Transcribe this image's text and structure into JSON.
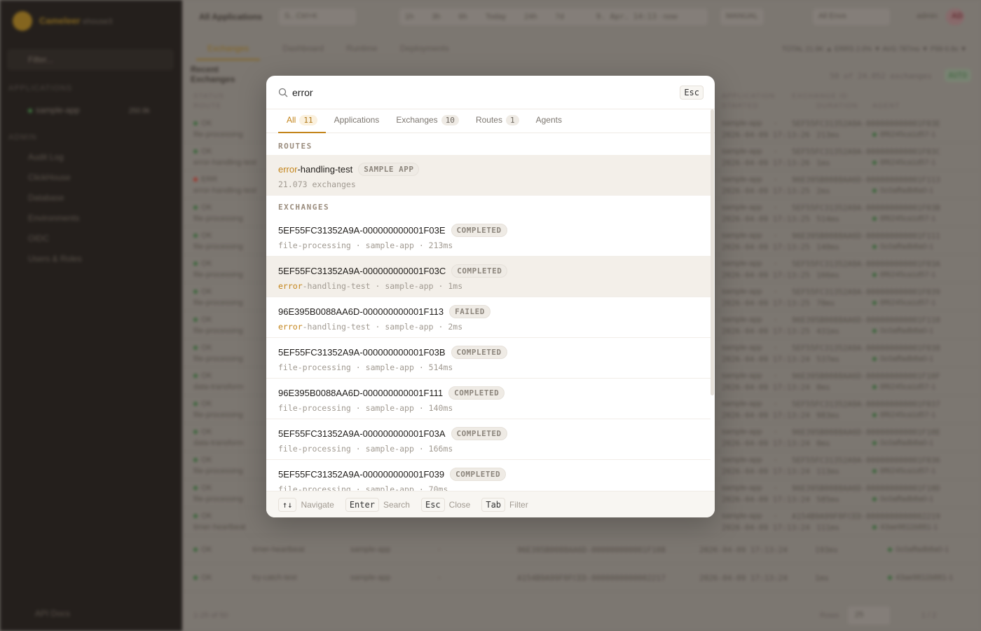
{
  "sidebar": {
    "brand": "Cameleer",
    "brand_sub": "ehouse3",
    "filter_placeholder": "Filter...",
    "applications_label": "APPLICATIONS",
    "app": {
      "name": "sample-app",
      "count": "250.9k"
    },
    "admin_label": "ADMIN",
    "admin_items": [
      "Audit Log",
      "ClickHouse",
      "Database",
      "Environments",
      "OIDC",
      "Users & Roles"
    ],
    "api_docs": "API Docs"
  },
  "topbar": {
    "scope": "All Applications",
    "search_hint": "S.. Ctrl+K",
    "time_buttons": [
      "1h",
      "3h",
      "6h",
      "Today",
      "24h",
      "7d"
    ],
    "range": "9. Apr. 14:13",
    "range_end": "now",
    "manual": "MANUAL",
    "env": "All Envs",
    "user": "admin",
    "avatar": "AD"
  },
  "tabs": [
    "Exchanges",
    "Dashboard",
    "Runtime",
    "Deployments"
  ],
  "kpis": "TOTAL 21.9K ▲  ERRS 2.0% ▼  AVG 787ms ▼  P99 6.9s ▼",
  "section_title": "Recent Exchanges",
  "exchange_count": "50 of 24.052 exchanges",
  "auto": "AUTO",
  "table": {
    "headers": [
      "STATUS",
      "ROUTE",
      "APPLICATION",
      "",
      "EXCHANGE ID",
      "STARTED",
      "DURATION",
      "AGENT"
    ],
    "rows": [
      [
        "OK",
        "file-processing",
        "sample-app",
        "-",
        "5EF55FC31352A9A-000000000001F03E",
        "2026-04-09 17:13:26",
        "213ms",
        "8f6245ca1d57-1"
      ],
      [
        "OK",
        "error-handling-test",
        "sample-app",
        "-",
        "5EF55FC31352A9A-000000000001F03C",
        "2026-04-09 17:13:26",
        "1ms",
        "8f6245ca1d57-1"
      ],
      [
        "ERR",
        "error-handling-test",
        "sample-app",
        "-",
        "96E395B0088AA6D-000000000001F113",
        "2026-04-09 17:13:25",
        "2ms",
        "0c0affadb8a0-1"
      ],
      [
        "OK",
        "file-processing",
        "sample-app",
        "-",
        "5EF55FC31352A9A-000000000001F03B",
        "2026-04-09 17:13:25",
        "514ms",
        "8f6245ca1d57-1"
      ],
      [
        "OK",
        "file-processing",
        "sample-app",
        "-",
        "96E395B0088AA6D-000000000001F111",
        "2026-04-09 17:13:25",
        "140ms",
        "0c0affadb8a0-1"
      ],
      [
        "OK",
        "file-processing",
        "sample-app",
        "-",
        "5EF55FC31352A9A-000000000001F03A",
        "2026-04-09 17:13:25",
        "166ms",
        "8f6245ca1d57-1"
      ],
      [
        "OK",
        "file-processing",
        "sample-app",
        "-",
        "5EF55FC31352A9A-000000000001F039",
        "2026-04-09 17:13:25",
        "70ms",
        "8f6245ca1d57-1"
      ],
      [
        "OK",
        "file-processing",
        "sample-app",
        "-",
        "96E395B0088AA6D-000000000001F110",
        "2026-04-09 17:13:25",
        "431ms",
        "0c0affadb8a0-1"
      ],
      [
        "OK",
        "file-processing",
        "sample-app",
        "-",
        "5EF55FC31352A9A-000000000001F038",
        "2026-04-09 17:13:24",
        "537ms",
        "0c0affadb8a0-1"
      ],
      [
        "OK",
        "data-transform",
        "sample-app",
        "-",
        "96E395B0088AA6D-000000000001F10F",
        "2026-04-09 17:13:24",
        "0ms",
        "8f6245ca1d57-1"
      ],
      [
        "OK",
        "file-processing",
        "sample-app",
        "-",
        "5EF55FC31352A9A-000000000001F037",
        "2026-04-09 17:13:24",
        "983ms",
        "8f6245ca1d57-1"
      ],
      [
        "OK",
        "data-transform",
        "sample-app",
        "-",
        "96E395B0088AA6D-000000000001F10E",
        "2026-04-09 17:13:24",
        "0ms",
        "0c0affadb8a0-1"
      ],
      [
        "OK",
        "file-processing",
        "sample-app",
        "-",
        "5EF55FC31352A9A-000000000001F036",
        "2026-04-09 17:13:24",
        "113ms",
        "8f6245ca1d57-1"
      ],
      [
        "OK",
        "file-processing",
        "sample-app",
        "-",
        "96E395B0088AA6D-000000000001F10D",
        "2026-04-09 17:13:24",
        "585ms",
        "0c0affadb8a0-1"
      ],
      [
        "OK",
        "timer-heartbeat",
        "sample-app",
        "-",
        "A154B9A99F0FCED-0000000000002219",
        "2026-04-09 17:13:24",
        "111ms",
        "43ae9811b881-1"
      ],
      [
        "OK",
        "timer-heartbeat",
        "sample-app",
        "-",
        "96E395B0088AA6D-000000000001F108",
        "2026-04-09 17:13:24",
        "193ms",
        "0c0affadb8a0-1"
      ],
      [
        "OK",
        "try-catch-test",
        "sample-app",
        "-",
        "A154B9A99F0FCED-0000000000002217",
        "2026-04-09 17:13:24",
        "1ms",
        "43ae9811b881-1"
      ]
    ]
  },
  "pagination": {
    "range": "1-25 of 50",
    "rows_label": "Rows",
    "rows_value": "25",
    "page": "1 / 2"
  },
  "palette": {
    "query": "error",
    "esc": "Esc",
    "tabs": [
      {
        "label": "All",
        "count": "11"
      },
      {
        "label": "Applications",
        "count": null
      },
      {
        "label": "Exchanges",
        "count": "10"
      },
      {
        "label": "Routes",
        "count": "1"
      },
      {
        "label": "Agents",
        "count": null
      }
    ],
    "routes_header": "ROUTES",
    "route": {
      "match": "error",
      "rest": "-handling-test",
      "badge": "SAMPLE APP",
      "sub": "21.073 exchanges"
    },
    "exchanges_header": "EXCHANGES",
    "exchanges": [
      {
        "id": "5EF55FC31352A9A-000000000001F03E",
        "status": "COMPLETED",
        "route_match": "",
        "route": "file-processing",
        "app": "sample-app",
        "duration": "213ms"
      },
      {
        "id": "5EF55FC31352A9A-000000000001F03C",
        "status": "COMPLETED",
        "route_match": "error",
        "route": "-handling-test",
        "app": "sample-app",
        "duration": "1ms"
      },
      {
        "id": "96E395B0088AA6D-000000000001F113",
        "status": "FAILED",
        "route_match": "error",
        "route": "-handling-test",
        "app": "sample-app",
        "duration": "2ms"
      },
      {
        "id": "5EF55FC31352A9A-000000000001F03B",
        "status": "COMPLETED",
        "route_match": "",
        "route": "file-processing",
        "app": "sample-app",
        "duration": "514ms"
      },
      {
        "id": "96E395B0088AA6D-000000000001F111",
        "status": "COMPLETED",
        "route_match": "",
        "route": "file-processing",
        "app": "sample-app",
        "duration": "140ms"
      },
      {
        "id": "5EF55FC31352A9A-000000000001F03A",
        "status": "COMPLETED",
        "route_match": "",
        "route": "file-processing",
        "app": "sample-app",
        "duration": "166ms"
      },
      {
        "id": "5EF55FC31352A9A-000000000001F039",
        "status": "COMPLETED",
        "route_match": "",
        "route": "file-processing",
        "app": "sample-app",
        "duration": "70ms"
      }
    ],
    "sep": " · ",
    "footer": [
      {
        "key": "↑↓",
        "label": "Navigate"
      },
      {
        "key": "Enter",
        "label": "Search"
      },
      {
        "key": "Esc",
        "label": "Close"
      },
      {
        "key": "Tab",
        "label": "Filter"
      }
    ]
  },
  "colors": {
    "accent": "#c3841a",
    "selected_bg": "#f3efe9",
    "ok": "#3c6b3c",
    "err": "#a33a2e"
  }
}
